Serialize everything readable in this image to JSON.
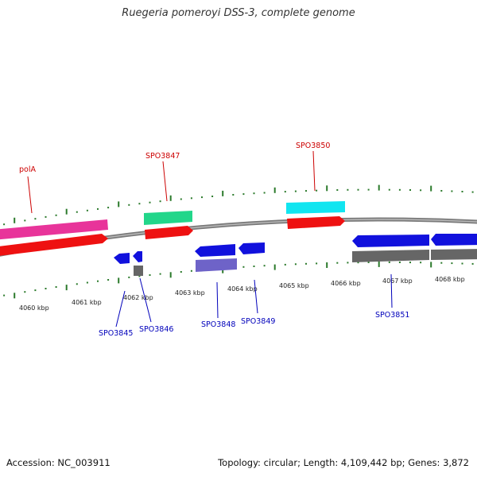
{
  "title": "Ruegeria pomeroyi DSS-3, complete genome",
  "footer": {
    "accession": "Accession: NC_003911",
    "summary": "Topology: circular; Length: 4,109,442 bp; Genes: 3,872"
  },
  "colors": {
    "backbone": "#808080",
    "tick": "#2b7a2b",
    "label_forward": "#cc0000",
    "label_reverse": "#0000bb"
  },
  "kbp_ticks": [
    {
      "label": "4060 kbp"
    },
    {
      "label": "4061 kbp"
    },
    {
      "label": "4062 kbp"
    },
    {
      "label": "4063 kbp"
    },
    {
      "label": "4064 kbp"
    },
    {
      "label": "4065 kbp"
    },
    {
      "label": "4066 kbp"
    },
    {
      "label": "4067 kbp"
    },
    {
      "label": "4068 kbp"
    }
  ],
  "gene_labels": [
    {
      "name": "polA",
      "strand": "forward"
    },
    {
      "name": "SPO3847",
      "strand": "forward"
    },
    {
      "name": "SPO3850",
      "strand": "forward"
    },
    {
      "name": "SPO3845",
      "strand": "reverse"
    },
    {
      "name": "SPO3846",
      "strand": "reverse"
    },
    {
      "name": "SPO3848",
      "strand": "reverse"
    },
    {
      "name": "SPO3849",
      "strand": "reverse"
    },
    {
      "name": "SPO3851",
      "strand": "reverse"
    }
  ]
}
